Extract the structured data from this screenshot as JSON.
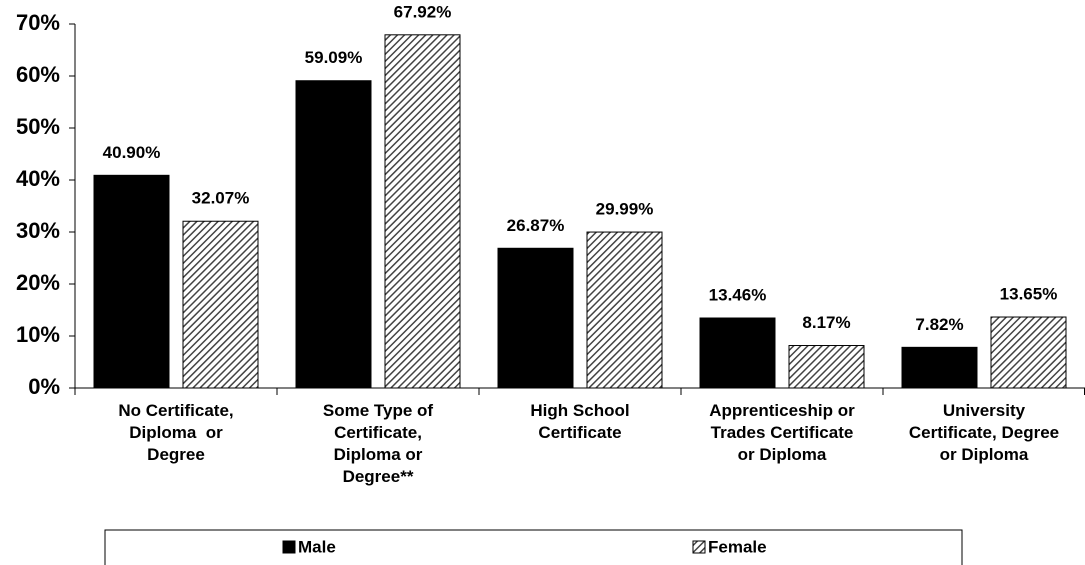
{
  "chart_data": {
    "type": "bar",
    "categories": [
      "No Certificate,\nDiploma  or\nDegree",
      "Some Type of\nCertificate,\nDiploma or\nDegree**",
      "High School\nCertificate",
      "Apprenticeship or\nTrades Certificate\nor Diploma",
      "University\nCertificate, Degree\nor Diploma"
    ],
    "series": [
      {
        "name": "Male",
        "color": "#000000",
        "values": [
          40.9,
          59.09,
          26.87,
          13.46,
          7.82
        ],
        "value_labels": [
          "40.90%",
          "59.09%",
          "26.87%",
          "13.46%",
          "7.82%"
        ]
      },
      {
        "name": "Female",
        "color": "#444444",
        "pattern": "hatch",
        "values": [
          32.07,
          67.92,
          29.99,
          8.17,
          13.65
        ],
        "value_labels": [
          "32.07%",
          "67.92%",
          "29.99%",
          "8.17%",
          "13.65%"
        ]
      }
    ],
    "ylim": [
      0,
      70
    ],
    "yticks": [
      {
        "value": 0,
        "label": "0%"
      },
      {
        "value": 10,
        "label": "10%"
      },
      {
        "value": 20,
        "label": "20%"
      },
      {
        "value": 30,
        "label": "30%"
      },
      {
        "value": 40,
        "label": "40%"
      },
      {
        "value": 50,
        "label": "50%"
      },
      {
        "value": 60,
        "label": "60%"
      },
      {
        "value": 70,
        "label": "70%"
      }
    ],
    "legend": "bottom"
  }
}
